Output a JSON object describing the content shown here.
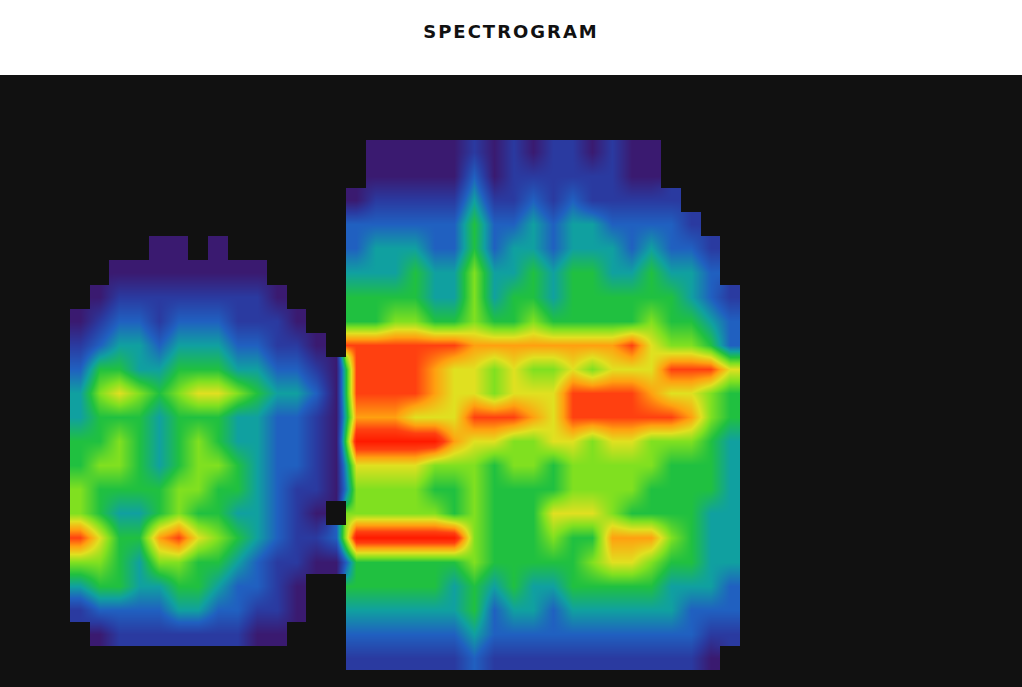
{
  "chart_data": {
    "type": "heatmap",
    "title": "SPECTROGRAM",
    "tick_labels": false,
    "color_range": [
      0,
      10
    ],
    "cells": [
      [
        null,
        null,
        null,
        null,
        null,
        null,
        null,
        null,
        null,
        null,
        null,
        null,
        null,
        null,
        null,
        1,
        1,
        1,
        1,
        1,
        2,
        1,
        2,
        1,
        2,
        2,
        1,
        2,
        1,
        1,
        null,
        null,
        null,
        null
      ],
      [
        null,
        null,
        null,
        null,
        null,
        null,
        null,
        null,
        null,
        null,
        null,
        null,
        null,
        null,
        null,
        1,
        1,
        1,
        1,
        1,
        3,
        1,
        2,
        2,
        2,
        2,
        2,
        2,
        1,
        1,
        null,
        null,
        null,
        null
      ],
      [
        null,
        null,
        null,
        null,
        null,
        null,
        null,
        null,
        null,
        null,
        null,
        null,
        null,
        null,
        1,
        2,
        2,
        2,
        2,
        2,
        4,
        2,
        2,
        3,
        2,
        3,
        2,
        2,
        2,
        2,
        2,
        null,
        null,
        null
      ],
      [
        null,
        null,
        null,
        null,
        null,
        null,
        null,
        null,
        null,
        null,
        null,
        null,
        null,
        null,
        3,
        3,
        3,
        3,
        3,
        3,
        5,
        3,
        3,
        4,
        3,
        4,
        4,
        3,
        3,
        3,
        3,
        2,
        null,
        null
      ],
      [
        null,
        null,
        null,
        null,
        1,
        1,
        null,
        1,
        null,
        null,
        null,
        null,
        null,
        null,
        3,
        4,
        4,
        4,
        3,
        3,
        5,
        3,
        4,
        4,
        3,
        4,
        4,
        4,
        3,
        4,
        3,
        3,
        2,
        null
      ],
      [
        null,
        null,
        1,
        1,
        1,
        1,
        1,
        1,
        1,
        1,
        null,
        null,
        null,
        null,
        4,
        4,
        4,
        5,
        4,
        4,
        6,
        4,
        4,
        5,
        4,
        5,
        5,
        4,
        4,
        5,
        4,
        4,
        3,
        null
      ],
      [
        null,
        1,
        2,
        2,
        2,
        2,
        2,
        2,
        2,
        2,
        1,
        null,
        null,
        null,
        5,
        5,
        5,
        5,
        4,
        4,
        6,
        4,
        5,
        5,
        4,
        5,
        5,
        5,
        5,
        5,
        5,
        4,
        3,
        2
      ],
      [
        1,
        2,
        3,
        3,
        2,
        3,
        3,
        3,
        2,
        2,
        2,
        1,
        null,
        null,
        5,
        5,
        6,
        6,
        5,
        5,
        6,
        5,
        5,
        6,
        5,
        5,
        5,
        5,
        5,
        6,
        5,
        5,
        4,
        3
      ],
      [
        2,
        3,
        4,
        4,
        3,
        4,
        4,
        4,
        3,
        3,
        2,
        2,
        1,
        null,
        9,
        9,
        9,
        9,
        9,
        9,
        8,
        8,
        8,
        8,
        8,
        8,
        8,
        8,
        9,
        7,
        6,
        6,
        5,
        3
      ],
      [
        3,
        5,
        5,
        4,
        4,
        5,
        5,
        5,
        4,
        4,
        3,
        3,
        2,
        1,
        9,
        9,
        9,
        9,
        8,
        7,
        7,
        6,
        7,
        6,
        6,
        7,
        6,
        7,
        7,
        7,
        9,
        9,
        9,
        7
      ],
      [
        4,
        6,
        7,
        6,
        5,
        6,
        7,
        7,
        6,
        5,
        4,
        4,
        3,
        1,
        9,
        9,
        9,
        9,
        8,
        7,
        7,
        6,
        7,
        7,
        7,
        9,
        9,
        9,
        9,
        8,
        7,
        7,
        6,
        5
      ],
      [
        4,
        5,
        5,
        5,
        4,
        5,
        5,
        5,
        4,
        4,
        3,
        3,
        2,
        1,
        8,
        8,
        8,
        7,
        7,
        7,
        9,
        9,
        9,
        8,
        7,
        9,
        9,
        9,
        9,
        9,
        9,
        8,
        6,
        5
      ],
      [
        5,
        5,
        6,
        5,
        4,
        5,
        6,
        5,
        4,
        4,
        3,
        3,
        2,
        1,
        10,
        10,
        10,
        10,
        10,
        8,
        7,
        7,
        6,
        6,
        7,
        7,
        6,
        7,
        7,
        6,
        6,
        6,
        5,
        4
      ],
      [
        5,
        6,
        6,
        5,
        4,
        5,
        6,
        6,
        5,
        4,
        3,
        3,
        2,
        1,
        7,
        7,
        7,
        7,
        6,
        6,
        6,
        5,
        6,
        6,
        5,
        6,
        6,
        6,
        6,
        6,
        5,
        5,
        5,
        4
      ],
      [
        6,
        5,
        5,
        5,
        5,
        6,
        6,
        5,
        5,
        4,
        3,
        2,
        2,
        1,
        6,
        6,
        6,
        6,
        5,
        5,
        6,
        5,
        5,
        5,
        5,
        6,
        6,
        6,
        6,
        5,
        5,
        5,
        5,
        4
      ],
      [
        6,
        5,
        4,
        4,
        5,
        6,
        5,
        5,
        4,
        4,
        3,
        2,
        1,
        null,
        6,
        6,
        6,
        6,
        6,
        5,
        6,
        5,
        5,
        5,
        7,
        7,
        7,
        6,
        5,
        5,
        5,
        5,
        4,
        4
      ],
      [
        9,
        7,
        5,
        5,
        8,
        9,
        7,
        6,
        5,
        4,
        3,
        2,
        2,
        3,
        10,
        10,
        10,
        10,
        10,
        10,
        6,
        5,
        5,
        5,
        6,
        5,
        5,
        8,
        8,
        8,
        6,
        5,
        4,
        4
      ],
      [
        6,
        6,
        5,
        4,
        6,
        6,
        5,
        5,
        4,
        3,
        2,
        2,
        1,
        1,
        5,
        5,
        5,
        5,
        5,
        5,
        6,
        5,
        5,
        5,
        5,
        5,
        6,
        7,
        7,
        6,
        5,
        5,
        4,
        4
      ],
      [
        4,
        5,
        5,
        4,
        4,
        5,
        5,
        4,
        3,
        3,
        2,
        1,
        null,
        null,
        5,
        5,
        5,
        5,
        5,
        4,
        5,
        4,
        5,
        4,
        4,
        5,
        5,
        5,
        5,
        5,
        4,
        4,
        4,
        3
      ],
      [
        2,
        3,
        3,
        3,
        3,
        4,
        4,
        3,
        3,
        2,
        2,
        1,
        null,
        null,
        4,
        4,
        4,
        4,
        4,
        4,
        5,
        3,
        4,
        4,
        3,
        4,
        4,
        4,
        4,
        4,
        4,
        3,
        3,
        3
      ],
      [
        null,
        1,
        2,
        2,
        2,
        2,
        2,
        2,
        2,
        1,
        1,
        null,
        null,
        null,
        3,
        3,
        3,
        3,
        3,
        3,
        4,
        3,
        3,
        3,
        3,
        3,
        3,
        3,
        3,
        3,
        3,
        3,
        2,
        2
      ],
      [
        null,
        null,
        null,
        null,
        null,
        null,
        null,
        null,
        null,
        null,
        null,
        null,
        null,
        null,
        2,
        2,
        2,
        2,
        2,
        2,
        3,
        2,
        2,
        2,
        2,
        2,
        2,
        2,
        2,
        2,
        2,
        2,
        1,
        null
      ]
    ]
  }
}
